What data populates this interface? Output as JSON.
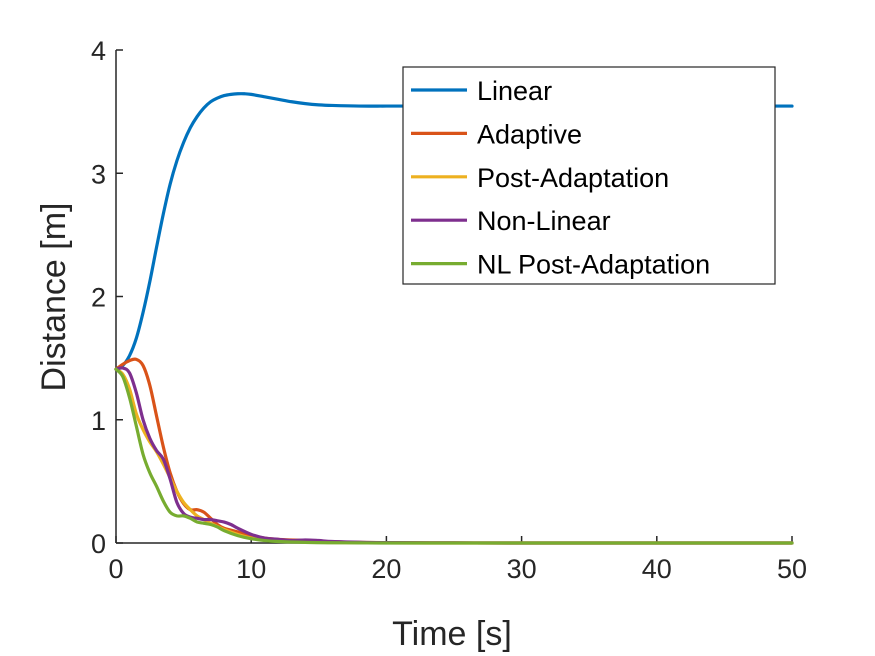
{
  "chart_data": {
    "type": "line",
    "xlabel": "Time [s]",
    "ylabel": "Distance [m]",
    "xlim": [
      0,
      50
    ],
    "ylim": [
      0,
      4
    ],
    "xticks": [
      "0",
      "10",
      "20",
      "30",
      "40",
      "50"
    ],
    "yticks": [
      "0",
      "1",
      "2",
      "3",
      "4"
    ],
    "grid": false,
    "legend_position": "top-right",
    "series": [
      {
        "name": "Linear",
        "color": "#0072BD",
        "x": [
          0,
          0.5,
          1,
          1.5,
          2,
          2.5,
          3,
          3.5,
          4,
          4.5,
          5,
          5.5,
          6,
          6.5,
          7,
          7.5,
          8,
          8.5,
          9,
          9.5,
          10,
          11,
          12,
          13,
          14,
          15,
          16,
          18,
          20,
          22,
          25,
          30,
          35,
          40,
          45,
          50
        ],
        "y": [
          1.41,
          1.44,
          1.52,
          1.66,
          1.87,
          2.12,
          2.4,
          2.67,
          2.91,
          3.1,
          3.25,
          3.37,
          3.46,
          3.53,
          3.58,
          3.61,
          3.63,
          3.64,
          3.645,
          3.645,
          3.64,
          3.62,
          3.6,
          3.58,
          3.565,
          3.555,
          3.55,
          3.545,
          3.545,
          3.545,
          3.545,
          3.545,
          3.545,
          3.545,
          3.545,
          3.545
        ]
      },
      {
        "name": "Adaptive",
        "color": "#D95319",
        "x": [
          0,
          0.5,
          1,
          1.5,
          2,
          2.5,
          3,
          3.5,
          4,
          4.5,
          5,
          5.5,
          6,
          6.5,
          7,
          7.5,
          8,
          9,
          10,
          11,
          12,
          14,
          16,
          18,
          20,
          25,
          30,
          40,
          50
        ],
        "y": [
          1.41,
          1.45,
          1.48,
          1.49,
          1.44,
          1.28,
          1.03,
          0.78,
          0.57,
          0.42,
          0.32,
          0.27,
          0.27,
          0.25,
          0.2,
          0.15,
          0.12,
          0.09,
          0.06,
          0.04,
          0.03,
          0.02,
          0.01,
          0.005,
          0.003,
          0.001,
          0,
          0,
          0
        ]
      },
      {
        "name": "Post-Adaptation",
        "color": "#EDB120",
        "x": [
          0,
          0.5,
          1,
          1.5,
          2,
          2.5,
          3,
          3.5,
          4,
          4.5,
          5,
          5.5,
          6,
          6.5,
          7,
          8,
          9,
          10,
          11,
          12,
          14,
          16,
          18,
          20,
          25,
          30,
          40,
          50
        ],
        "y": [
          1.41,
          1.37,
          1.25,
          1.05,
          0.92,
          0.82,
          0.74,
          0.64,
          0.53,
          0.42,
          0.33,
          0.27,
          0.22,
          0.19,
          0.16,
          0.11,
          0.07,
          0.04,
          0.025,
          0.015,
          0.008,
          0.004,
          0.002,
          0.001,
          0,
          0,
          0,
          0
        ]
      },
      {
        "name": "Non-Linear",
        "color": "#7E2F8E",
        "x": [
          0,
          0.5,
          1,
          1.5,
          2,
          2.5,
          3,
          3.5,
          4,
          4.5,
          5,
          5.5,
          6,
          6.5,
          7,
          7.5,
          8,
          8.5,
          9,
          10,
          11,
          12,
          13,
          14,
          15,
          16,
          18,
          20,
          25,
          30,
          40,
          50
        ],
        "y": [
          1.41,
          1.42,
          1.38,
          1.22,
          1.0,
          0.85,
          0.75,
          0.68,
          0.52,
          0.33,
          0.24,
          0.21,
          0.2,
          0.19,
          0.19,
          0.18,
          0.17,
          0.15,
          0.12,
          0.07,
          0.04,
          0.03,
          0.02,
          0.025,
          0.02,
          0.012,
          0.006,
          0.003,
          0.001,
          0,
          0,
          0
        ]
      },
      {
        "name": "NL Post-Adaptation",
        "color": "#77AC30",
        "x": [
          0,
          0.5,
          1,
          1.5,
          2,
          2.5,
          3,
          3.5,
          4,
          4.5,
          5,
          5.5,
          6,
          6.5,
          7,
          7.5,
          8,
          9,
          10,
          11,
          12,
          14,
          16,
          18,
          20,
          25,
          30,
          40,
          50
        ],
        "y": [
          1.41,
          1.35,
          1.18,
          0.95,
          0.72,
          0.57,
          0.46,
          0.34,
          0.25,
          0.22,
          0.22,
          0.2,
          0.17,
          0.16,
          0.15,
          0.13,
          0.1,
          0.06,
          0.035,
          0.02,
          0.012,
          0.005,
          0.002,
          0.001,
          0,
          0,
          0,
          0,
          0
        ]
      }
    ]
  }
}
